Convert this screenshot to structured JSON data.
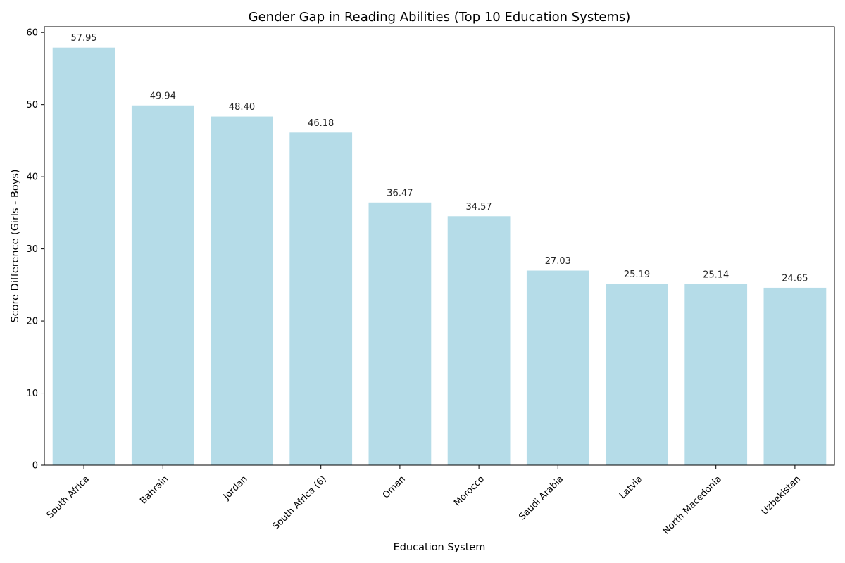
{
  "chart_data": {
    "type": "bar",
    "title": "Gender Gap in Reading Abilities (Top 10 Education Systems)",
    "xlabel": "Education System",
    "ylabel": "Score Difference (Girls - Boys)",
    "categories": [
      "South Africa",
      "Bahrain",
      "Jordan",
      "South Africa (6)",
      "Oman",
      "Morocco",
      "Saudi Arabia",
      "Latvia",
      "North Macedonia",
      "Uzbekistan"
    ],
    "values": [
      57.95,
      49.94,
      48.4,
      46.18,
      36.47,
      34.57,
      27.03,
      25.19,
      25.14,
      24.65
    ],
    "value_labels": [
      "57.95",
      "49.94",
      "48.40",
      "46.18",
      "36.47",
      "34.57",
      "27.03",
      "25.19",
      "25.14",
      "24.65"
    ],
    "ylim": [
      0,
      60.8
    ],
    "yticks": [
      0,
      10,
      20,
      30,
      40,
      50,
      60
    ],
    "grid": false,
    "legend": "none",
    "bar_color": "#add8e6"
  }
}
